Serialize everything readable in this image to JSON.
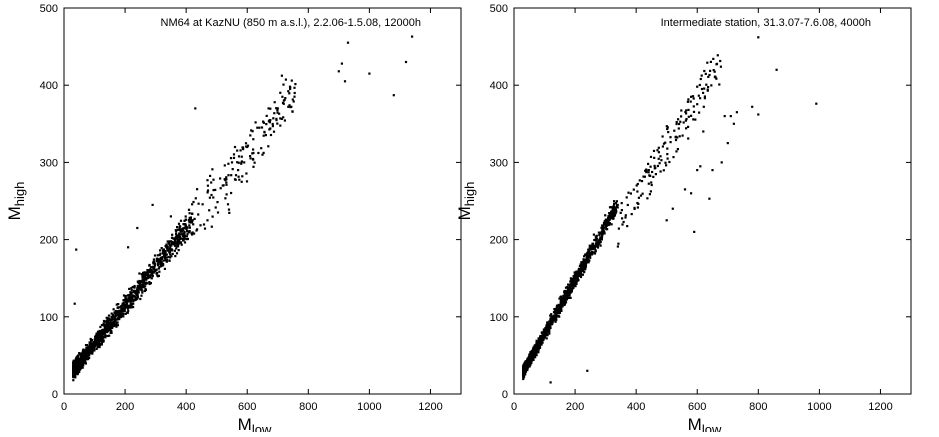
{
  "chart_data": [
    {
      "type": "scatter",
      "annotation": "NM64 at KazNU (850 m a.s.l.), 2.2.06-1.5.08, 12000h",
      "xlabel": "M",
      "xlabel_sub": "low",
      "ylabel": "M",
      "ylabel_sub": "high",
      "xlim": [
        0,
        1300
      ],
      "ylim": [
        0,
        500
      ],
      "xticks": [
        0,
        200,
        400,
        600,
        800,
        1000,
        1200
      ],
      "yticks": [
        0,
        100,
        200,
        300,
        400,
        500
      ],
      "grid": false,
      "marker_color": "#000000",
      "outliers": [
        [
          35,
          117
        ],
        [
          40,
          187
        ],
        [
          210,
          190
        ],
        [
          240,
          215
        ],
        [
          290,
          245
        ],
        [
          350,
          230
        ],
        [
          430,
          370
        ],
        [
          470,
          225
        ],
        [
          520,
          270
        ],
        [
          550,
          300
        ],
        [
          560,
          320
        ],
        [
          570,
          290
        ],
        [
          590,
          300
        ],
        [
          600,
          320
        ],
        [
          610,
          335
        ],
        [
          620,
          330
        ],
        [
          640,
          345
        ],
        [
          650,
          310
        ],
        [
          670,
          370
        ],
        [
          690,
          378
        ],
        [
          700,
          370
        ],
        [
          720,
          380
        ],
        [
          740,
          398
        ],
        [
          900,
          418
        ],
        [
          910,
          428
        ],
        [
          920,
          405
        ],
        [
          930,
          455
        ],
        [
          1000,
          415
        ],
        [
          1080,
          387
        ],
        [
          1120,
          430
        ],
        [
          1140,
          463
        ]
      ],
      "band": {
        "x_start": 30,
        "x_end": 420,
        "a": 15,
        "b": 0.5,
        "spread": 12
      },
      "sparse": {
        "x_start": 420,
        "x_end": 760,
        "a": 10,
        "b": 0.5,
        "spread": 25
      }
    },
    {
      "type": "scatter",
      "annotation": "Intermediate station, 31.3.07-7.6.08, 4000h",
      "xlabel": "M",
      "xlabel_sub": "low",
      "ylabel": "M",
      "ylabel_sub": "high",
      "xlim": [
        0,
        1300
      ],
      "ylim": [
        0,
        500
      ],
      "xticks": [
        0,
        200,
        400,
        600,
        800,
        1000,
        1200
      ],
      "yticks": [
        0,
        100,
        200,
        300,
        400,
        500
      ],
      "grid": false,
      "marker_color": "#000000",
      "outliers": [
        [
          120,
          15
        ],
        [
          240,
          30
        ],
        [
          500,
          225
        ],
        [
          520,
          240
        ],
        [
          560,
          265
        ],
        [
          580,
          260
        ],
        [
          590,
          210
        ],
        [
          600,
          290
        ],
        [
          610,
          295
        ],
        [
          620,
          340
        ],
        [
          640,
          253
        ],
        [
          650,
          290
        ],
        [
          660,
          410
        ],
        [
          680,
          300
        ],
        [
          690,
          360
        ],
        [
          700,
          325
        ],
        [
          710,
          360
        ],
        [
          720,
          350
        ],
        [
          730,
          365
        ],
        [
          780,
          372
        ],
        [
          800,
          362
        ],
        [
          800,
          462
        ],
        [
          860,
          420
        ],
        [
          990,
          376
        ],
        [
          580,
          385
        ],
        [
          600,
          398
        ]
      ],
      "band": {
        "x_start": 30,
        "x_end": 340,
        "a": 8,
        "b": 0.7,
        "spread": 9
      },
      "sparse": {
        "x_start": 340,
        "x_end": 680,
        "a": 10,
        "b": 0.62,
        "spread": 22
      }
    }
  ]
}
